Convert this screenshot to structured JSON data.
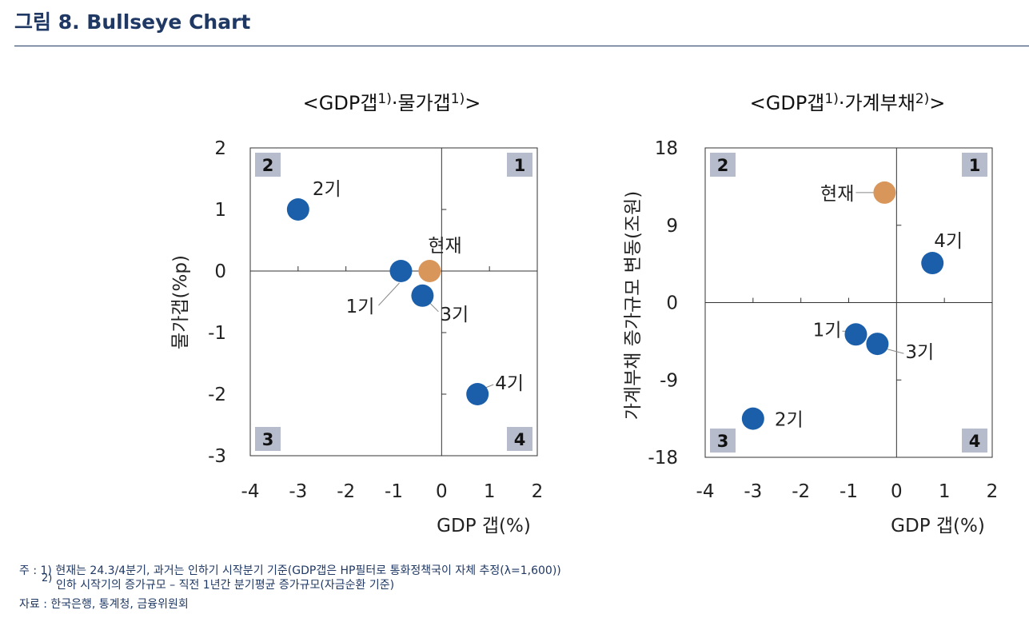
{
  "figure": {
    "title": "그림 8. Bullseye Chart"
  },
  "colors": {
    "title": "#1f3864",
    "series_past": "#1b5faa",
    "series_current": "#d9965a",
    "quadrant_box": "#b6bccb",
    "axis": "#333333"
  },
  "chart_data": [
    {
      "type": "scatter",
      "title_main": "<GDP갭",
      "title_sup1": "1)",
      "title_mid": "·물가갭",
      "title_sup2": "1)",
      "title_end": ">",
      "xlabel": "GDP 갭(%)",
      "ylabel": "물가갭(%p)",
      "xlim": [
        -4,
        2
      ],
      "ylim": [
        -3,
        2
      ],
      "xticks": [
        "-4",
        "-3",
        "-2",
        "-1",
        "0",
        "1",
        "2"
      ],
      "yticks": [
        "2",
        "1",
        "0",
        "-1",
        "-2",
        "-3"
      ],
      "quadrants": [
        "1",
        "2",
        "3",
        "4"
      ],
      "points": [
        {
          "label": "2기",
          "x": -3.0,
          "y": 1.0,
          "kind": "past"
        },
        {
          "label": "1기",
          "x": -0.85,
          "y": 0.0,
          "kind": "past"
        },
        {
          "label": "현재",
          "x": -0.25,
          "y": 0.0,
          "kind": "current"
        },
        {
          "label": "3기",
          "x": -0.4,
          "y": -0.4,
          "kind": "past"
        },
        {
          "label": "4기",
          "x": 0.75,
          "y": -2.0,
          "kind": "past"
        }
      ]
    },
    {
      "type": "scatter",
      "title_main": "<GDP갭",
      "title_sup1": "1)",
      "title_mid": "·가계부채",
      "title_sup2": "2)",
      "title_end": ">",
      "xlabel": "GDP 갭(%)",
      "ylabel": "가계부채 증가규모 변동(조원)",
      "xlim": [
        -4,
        2
      ],
      "ylim": [
        -18,
        18
      ],
      "xticks": [
        "-4",
        "-3",
        "-2",
        "-1",
        "0",
        "1",
        "2"
      ],
      "yticks": [
        "18",
        "9",
        "0",
        "-9",
        "-18"
      ],
      "quadrants": [
        "1",
        "2",
        "3",
        "4"
      ],
      "points": [
        {
          "label": "현재",
          "x": -0.25,
          "y": 12.8,
          "kind": "current"
        },
        {
          "label": "4기",
          "x": 0.75,
          "y": 4.6,
          "kind": "past"
        },
        {
          "label": "1기",
          "x": -0.85,
          "y": -3.7,
          "kind": "past"
        },
        {
          "label": "3기",
          "x": -0.4,
          "y": -4.8,
          "kind": "past"
        },
        {
          "label": "2기",
          "x": -3.0,
          "y": -13.5,
          "kind": "past"
        }
      ]
    }
  ],
  "notes": {
    "prefix": "주 : ",
    "n1_mark": "1)",
    "n1_text": " 현재는 24.3/4분기, 과거는 인하기 시작분기 기준(GDP갭은 HP필터로 통화정책국이 자체 추정(λ=1,600))",
    "n2_mark": "2)",
    "n2_text": "인하 시작기의 증가규모 – 직전 1년간 분기평균 증가규모(자금순환 기준)",
    "source": "자료 : 한국은행, 통계청, 금융위원회"
  }
}
